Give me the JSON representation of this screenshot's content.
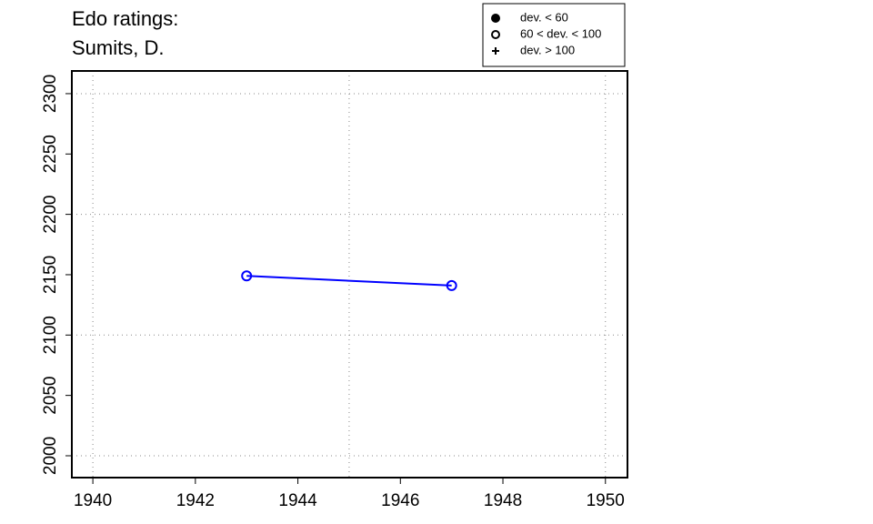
{
  "chart_data": {
    "type": "line",
    "title": "Edo ratings:",
    "subtitle": "Sumits, D.",
    "x": [
      1943,
      1947
    ],
    "series": [
      {
        "color": "#0000ff",
        "marker": "open-circle",
        "values": [
          2149,
          2141
        ]
      }
    ],
    "xlim": [
      1939.59,
      1950.43
    ],
    "ylim": [
      1981.9,
      2318.8
    ],
    "xticks": [
      1940,
      1942,
      1944,
      1946,
      1948,
      1950
    ],
    "yticks": [
      2000,
      2050,
      2100,
      2150,
      2200,
      2250,
      2300
    ],
    "xgrid": [
      1940,
      1945,
      1950
    ],
    "ygrid": [
      2000,
      2100,
      2200,
      2300
    ],
    "legend": [
      {
        "label": "dev. < 60",
        "marker": "filled-circle"
      },
      {
        "label": "60 < dev. < 100",
        "marker": "open-circle"
      },
      {
        "label": "dev. > 100",
        "marker": "plus"
      }
    ],
    "legend_position": "top-right"
  }
}
